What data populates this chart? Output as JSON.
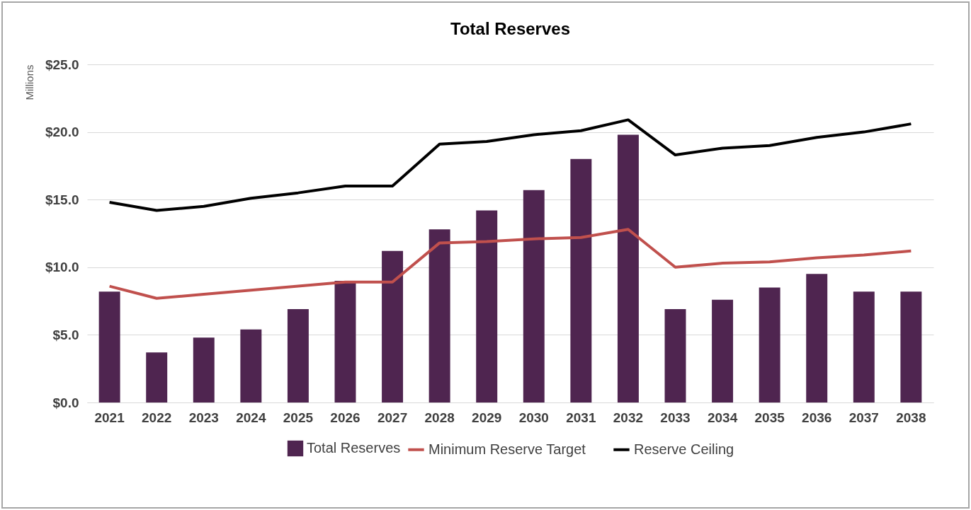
{
  "chart_data": {
    "type": "bar",
    "title": "Total Reserves",
    "ylabel": "Millions",
    "categories": [
      "2021",
      "2022",
      "2023",
      "2024",
      "2025",
      "2026",
      "2027",
      "2028",
      "2029",
      "2030",
      "2031",
      "2032",
      "2033",
      "2034",
      "2035",
      "2036",
      "2037",
      "2038"
    ],
    "series": [
      {
        "name": "Total Reserves",
        "color": "#4f2550",
        "values": [
          8.2,
          3.7,
          4.8,
          5.4,
          6.9,
          9.0,
          11.2,
          12.8,
          14.2,
          15.7,
          18.0,
          19.8,
          6.9,
          7.6,
          8.5,
          9.5,
          8.2,
          8.2
        ]
      },
      {
        "name": "Minimum Reserve Target",
        "type": "line",
        "color": "#c0504d",
        "values": [
          8.6,
          7.7,
          8.0,
          8.3,
          8.6,
          8.9,
          8.9,
          11.8,
          11.9,
          12.1,
          12.2,
          12.8,
          10.0,
          10.3,
          10.4,
          10.7,
          10.9,
          11.2
        ]
      },
      {
        "name": "Reserve Ceiling",
        "type": "line",
        "color": "#000000",
        "values": [
          14.8,
          14.2,
          14.5,
          15.1,
          15.5,
          16.0,
          16.0,
          19.1,
          19.3,
          19.8,
          20.1,
          20.9,
          18.3,
          18.8,
          19.0,
          19.6,
          20.0,
          20.6
        ]
      }
    ],
    "ylim": [
      0,
      25
    ],
    "yticks": [
      {
        "value": 0,
        "label": "$0.0"
      },
      {
        "value": 5,
        "label": "$5.0"
      },
      {
        "value": 10,
        "label": "$10.0"
      },
      {
        "value": 15,
        "label": "$15.0"
      },
      {
        "value": 20,
        "label": "$20.0"
      },
      {
        "value": 25,
        "label": "$25.0"
      }
    ],
    "grid": "y",
    "legend": "bottom",
    "marker": "none",
    "line_style": "solid"
  }
}
